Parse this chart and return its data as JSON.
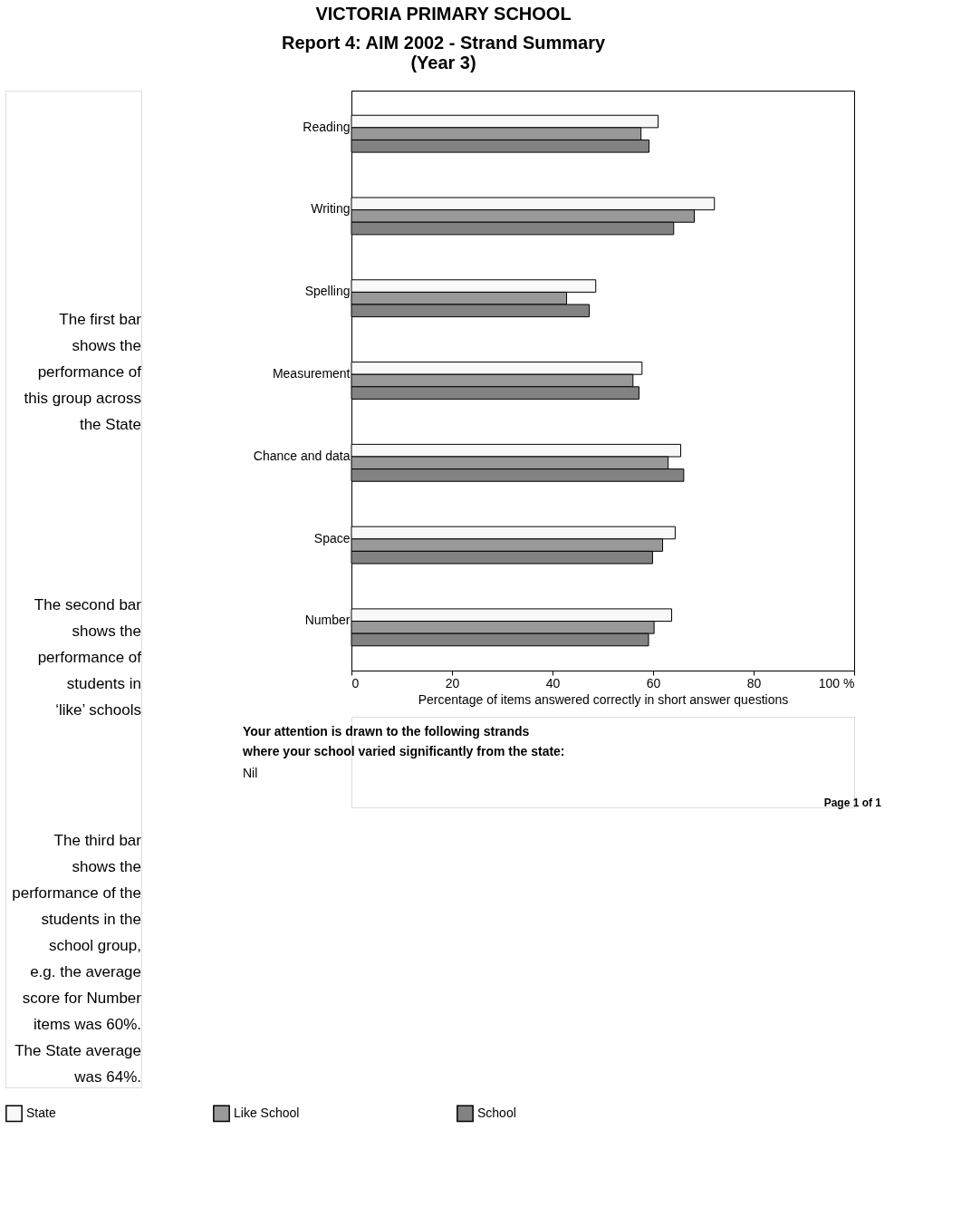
{
  "chart_data": {
    "type": "bar",
    "orientation": "horizontal",
    "title": "VICTORIA PRIMARY SCHOOL",
    "subtitle": [
      "Report 4: AIM 2002 - Strand Summary",
      "(Year 3)"
    ],
    "xlabel": "Percentage of items answered correctly in short answer questions",
    "categories": [
      "Reading",
      "Writing",
      "Spelling",
      "Measurement",
      "Chance and data",
      "Space",
      "Number"
    ],
    "series": [
      {
        "name": "State",
        "color": "#f8f8f8",
        "values": [
          61.0,
          72.2,
          48.6,
          57.8,
          65.5,
          64.4,
          63.7
        ]
      },
      {
        "name": "Like School",
        "color": "#999999",
        "values": [
          57.6,
          68.2,
          42.8,
          56.0,
          63.0,
          61.9,
          60.2
        ]
      },
      {
        "name": "School",
        "color": "#828282",
        "values": [
          59.2,
          64.1,
          47.3,
          57.2,
          66.1,
          59.9,
          59.1
        ]
      }
    ],
    "xlim": [
      0,
      100
    ],
    "xticks": [
      0,
      20,
      40,
      60,
      80,
      {
        "value": 100,
        "label": "100  %"
      }
    ],
    "grid": false,
    "legend": "bottom",
    "annotations": [
      "The first bar\nshows the\nperformance of\nthis group across\nthe State",
      "The second bar\nshows the\nperformance of\nstudents in\n‘like’ schools",
      "The third bar\nshows the\nperformance of the\nstudents in the\nschool group,\ne.g. the average\nscore for Number\nitems was 60%.\nThe State average\nwas 64%.",
      "Your attention is drawn to the following strands\nwhere your school varied significantly from the state:",
      "Nil",
      "Page 1 of 1"
    ]
  }
}
